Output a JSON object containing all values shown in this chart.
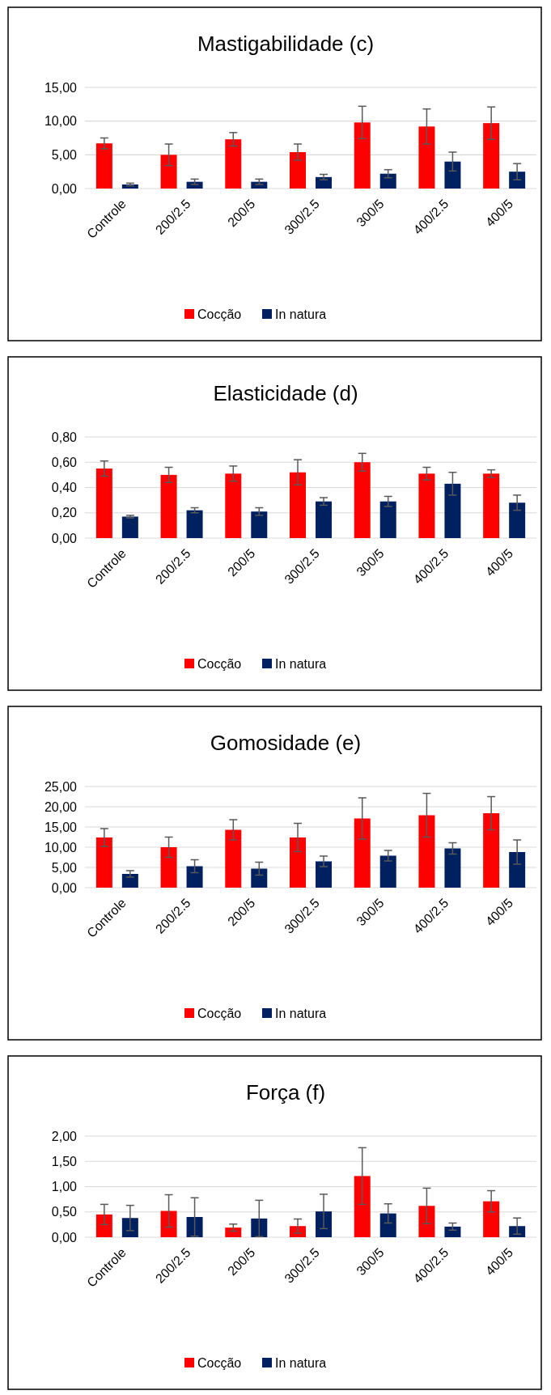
{
  "chart_data": [
    {
      "type": "bar",
      "title": "Mastigabilidade (c)",
      "categories": [
        "Controle",
        "200/2.5",
        "200/5",
        "300/2.5",
        "300/5",
        "400/2.5",
        "400/5"
      ],
      "ylim": [
        0,
        15
      ],
      "yticks": [
        {
          "value": 0,
          "label": "0,00"
        },
        {
          "value": 5,
          "label": "5,00"
        },
        {
          "value": 10,
          "label": "10,00"
        },
        {
          "value": 15,
          "label": "15,00"
        }
      ],
      "grid": "y",
      "legend": "bottom",
      "series": [
        {
          "name": "Cocção",
          "color": "#ff0000",
          "values": [
            6.7,
            5.0,
            7.3,
            5.4,
            9.8,
            9.2,
            9.7
          ],
          "errors": [
            0.8,
            1.6,
            1.0,
            1.2,
            2.4,
            2.6,
            2.4
          ]
        },
        {
          "name": "In natura",
          "color": "#002060",
          "values": [
            0.6,
            1.0,
            1.0,
            1.7,
            2.2,
            4.0,
            2.5
          ],
          "errors": [
            0.2,
            0.4,
            0.4,
            0.4,
            0.6,
            1.4,
            1.2
          ]
        }
      ]
    },
    {
      "type": "bar",
      "title": "Elasticidade (d)",
      "categories": [
        "Controle",
        "200/2.5",
        "200/5",
        "300/2.5",
        "300/5",
        "400/2.5",
        "400/5"
      ],
      "ylim": [
        0,
        0.8
      ],
      "yticks": [
        {
          "value": 0,
          "label": "0,00"
        },
        {
          "value": 0.2,
          "label": "0,20"
        },
        {
          "value": 0.4,
          "label": "0,40"
        },
        {
          "value": 0.6,
          "label": "0,60"
        },
        {
          "value": 0.8,
          "label": "0,80"
        }
      ],
      "grid": "y",
      "legend": "bottom",
      "series": [
        {
          "name": "Cocção",
          "color": "#ff0000",
          "values": [
            0.55,
            0.5,
            0.51,
            0.52,
            0.6,
            0.51,
            0.51
          ],
          "errors": [
            0.06,
            0.06,
            0.06,
            0.1,
            0.07,
            0.05,
            0.03
          ]
        },
        {
          "name": "In natura",
          "color": "#002060",
          "values": [
            0.17,
            0.22,
            0.21,
            0.29,
            0.29,
            0.43,
            0.28
          ],
          "errors": [
            0.01,
            0.02,
            0.03,
            0.03,
            0.04,
            0.09,
            0.06
          ]
        }
      ]
    },
    {
      "type": "bar",
      "title": "Gomosidade (e)",
      "categories": [
        "Controle",
        "200/2.5",
        "200/5",
        "300/2.5",
        "300/5",
        "400/2.5",
        "400/5"
      ],
      "ylim": [
        0,
        25
      ],
      "yticks": [
        {
          "value": 0,
          "label": "0,00"
        },
        {
          "value": 5,
          "label": "5,00"
        },
        {
          "value": 10,
          "label": "10,00"
        },
        {
          "value": 15,
          "label": "15,00"
        },
        {
          "value": 20,
          "label": "20,00"
        },
        {
          "value": 25,
          "label": "25,00"
        }
      ],
      "grid": "y",
      "legend": "bottom",
      "series": [
        {
          "name": "Cocção",
          "color": "#ff0000",
          "values": [
            12.4,
            10.0,
            14.3,
            12.4,
            17.1,
            17.9,
            18.4
          ],
          "errors": [
            2.2,
            2.5,
            2.5,
            3.5,
            5.1,
            5.4,
            4.1
          ]
        },
        {
          "name": "In natura",
          "color": "#002060",
          "values": [
            3.4,
            5.3,
            4.7,
            6.5,
            7.9,
            9.7,
            8.8
          ],
          "errors": [
            0.8,
            1.6,
            1.6,
            1.3,
            1.3,
            1.4,
            3.0
          ]
        }
      ]
    },
    {
      "type": "bar",
      "title": "Força (f)",
      "categories": [
        "Controle",
        "200/2.5",
        "200/5",
        "300/2.5",
        "300/5",
        "400/2.5",
        "400/5"
      ],
      "ylim": [
        0,
        2
      ],
      "yticks": [
        {
          "value": 0,
          "label": "0,00"
        },
        {
          "value": 0.5,
          "label": "0,50"
        },
        {
          "value": 1,
          "label": "1,00"
        },
        {
          "value": 1.5,
          "label": "1,50"
        },
        {
          "value": 2,
          "label": "2,00"
        }
      ],
      "grid": "y",
      "legend": "bottom",
      "series": [
        {
          "name": "Cocção",
          "color": "#ff0000",
          "values": [
            0.45,
            0.52,
            0.19,
            0.22,
            1.21,
            0.62,
            0.71
          ],
          "errors": [
            0.2,
            0.32,
            0.07,
            0.14,
            0.56,
            0.35,
            0.21
          ]
        },
        {
          "name": "In natura",
          "color": "#002060",
          "values": [
            0.38,
            0.4,
            0.37,
            0.51,
            0.47,
            0.21,
            0.22
          ],
          "errors": [
            0.25,
            0.38,
            0.36,
            0.34,
            0.19,
            0.07,
            0.16
          ]
        }
      ]
    }
  ]
}
